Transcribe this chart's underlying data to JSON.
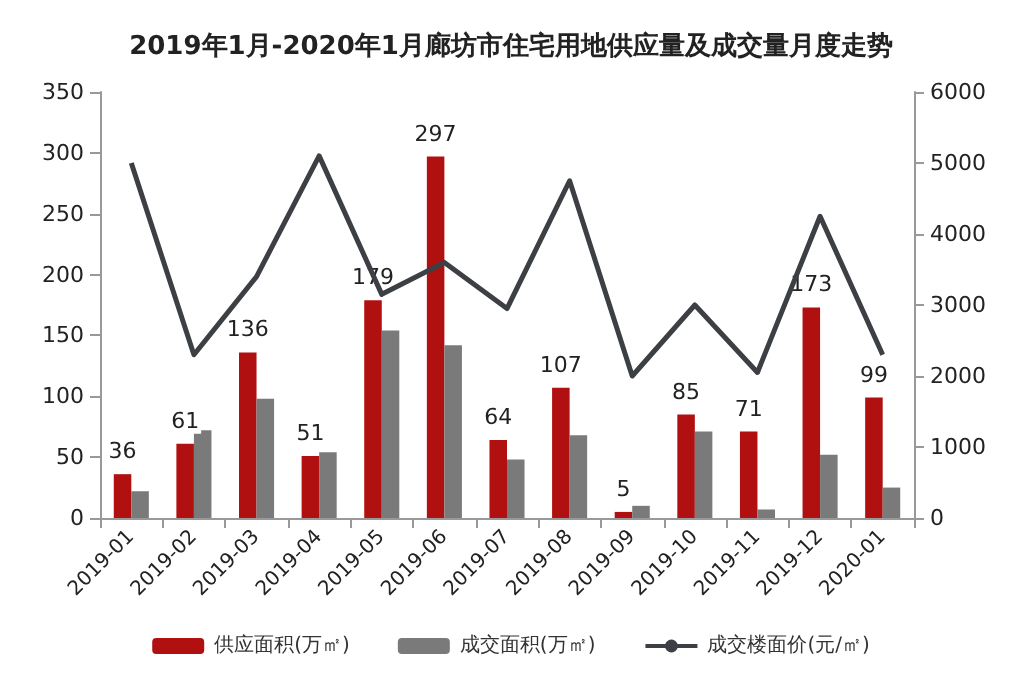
{
  "chart_data": {
    "type": "bar",
    "title": "2019年1月-2020年1月廊坊市住宅用地供应量及成交量月度走势",
    "categories": [
      "2019-01",
      "2019-02",
      "2019-03",
      "2019-04",
      "2019-05",
      "2019-06",
      "2019-07",
      "2019-08",
      "2019-09",
      "2019-10",
      "2019-11",
      "2019-12",
      "2020-01"
    ],
    "series": [
      {
        "name": "供应面积(万㎡)",
        "color": "#b01010",
        "values": [
          36,
          61,
          136,
          51,
          179,
          297,
          64,
          107,
          5,
          85,
          71,
          173,
          99
        ],
        "value_labels": [
          "36",
          "61",
          "136",
          "51",
          "179",
          "297",
          "64",
          "107",
          "5",
          "85",
          "71",
          "173",
          "99"
        ]
      },
      {
        "name": "成交面积(万㎡)",
        "color": "#7a7a7a",
        "values": [
          22,
          72,
          98,
          54,
          154,
          142,
          48,
          68,
          10,
          71,
          7,
          52,
          25
        ]
      },
      {
        "name": "成交楼面价(元/㎡)",
        "type": "line",
        "axis": "y2",
        "color": "#3c3f44",
        "values": [
          5000,
          2300,
          3400,
          5100,
          3150,
          3600,
          2950,
          4750,
          2000,
          3000,
          2050,
          4250,
          2300
        ]
      }
    ],
    "ylim": [
      0,
      350
    ],
    "yticks": [
      0,
      50,
      100,
      150,
      200,
      250,
      300,
      350
    ],
    "y2lim": [
      0,
      6000
    ],
    "y2ticks": [
      0,
      1000,
      2000,
      3000,
      4000,
      5000,
      6000
    ],
    "grid": false,
    "legend": "bottom",
    "marker": "none"
  }
}
